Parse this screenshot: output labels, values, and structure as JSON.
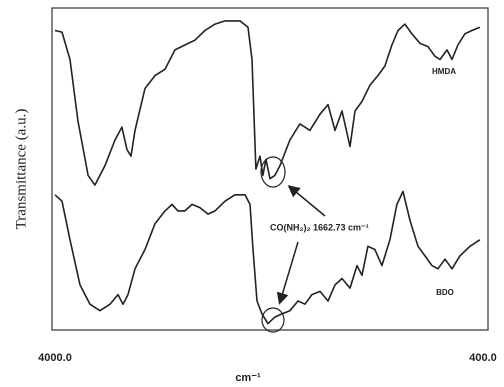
{
  "chart_data": {
    "type": "line",
    "xlabel": "cm⁻¹",
    "ylabel": "Transmittance (a.u.)",
    "xlim": [
      4000,
      400
    ],
    "ylim": [
      0,
      100
    ],
    "xticks": [
      {
        "value": 4000,
        "label": "4000.0"
      },
      {
        "value": 400,
        "label": "400.0"
      }
    ],
    "grid": false,
    "annotations": [
      "HMDA",
      "BDO",
      "CO(NH₂)₂  1662.73 cm⁻¹"
    ],
    "series": [
      {
        "name": "HMDA",
        "color": "#222222",
        "x": [
          4000,
          3941,
          3874,
          3807,
          3722,
          3664,
          3580,
          3495,
          3437,
          3394,
          3361,
          3327,
          3243,
          3159,
          3075,
          2991,
          2907,
          2823,
          2739,
          2654,
          2570,
          2444,
          2377,
          2343,
          2310,
          2276,
          2251,
          2226,
          2192,
          2150,
          2108,
          2024,
          1940,
          1856,
          1772,
          1704,
          1645,
          1586,
          1519,
          1477,
          1418,
          1351,
          1284,
          1225,
          1166,
          1115,
          1057,
          998,
          930,
          863,
          804,
          762,
          703,
          661,
          611,
          552,
          493,
          426
        ],
        "values": [
          93,
          92.5,
          84,
          65,
          48,
          45,
          51,
          59,
          63,
          56,
          54,
          62,
          75,
          79,
          81,
          87,
          88.5,
          90,
          93,
          95,
          96,
          96,
          94,
          84,
          50,
          54,
          48,
          53,
          47,
          48,
          51,
          59,
          64,
          62,
          67,
          70,
          62,
          68,
          57,
          68,
          71,
          76,
          79,
          82,
          88.5,
          93,
          95,
          92,
          89,
          88,
          85,
          84,
          87,
          84,
          88.5,
          92,
          93,
          94
        ]
      },
      {
        "name": "BDO",
        "color": "#222222",
        "x": [
          4000,
          3941,
          3874,
          3790,
          3706,
          3622,
          3537,
          3470,
          3428,
          3386,
          3327,
          3243,
          3159,
          3075,
          3016,
          2966,
          2907,
          2848,
          2781,
          2713,
          2654,
          2570,
          2486,
          2402,
          2360,
          2335,
          2301,
          2259,
          2209,
          2150,
          2091,
          2024,
          1956,
          1897,
          1839,
          1771,
          1704,
          1645,
          1586,
          1519,
          1460,
          1418,
          1368,
          1309,
          1250,
          1183,
          1124,
          1073,
          1014,
          947,
          888,
          829,
          779,
          720,
          661,
          594,
          510,
          426
        ],
        "values": [
          42,
          40,
          28,
          14,
          8,
          6,
          8,
          11,
          8,
          11,
          19,
          25,
          33,
          37,
          39,
          37,
          37,
          39,
          38,
          36,
          37,
          40,
          42,
          42,
          39,
          25,
          9,
          5,
          2,
          4,
          5,
          6,
          9,
          8,
          11,
          12,
          9,
          14,
          16,
          13,
          20,
          17,
          26,
          25,
          20,
          28,
          39,
          43,
          34,
          26,
          23,
          20,
          19,
          22,
          19,
          23,
          26,
          28
        ]
      }
    ]
  }
}
